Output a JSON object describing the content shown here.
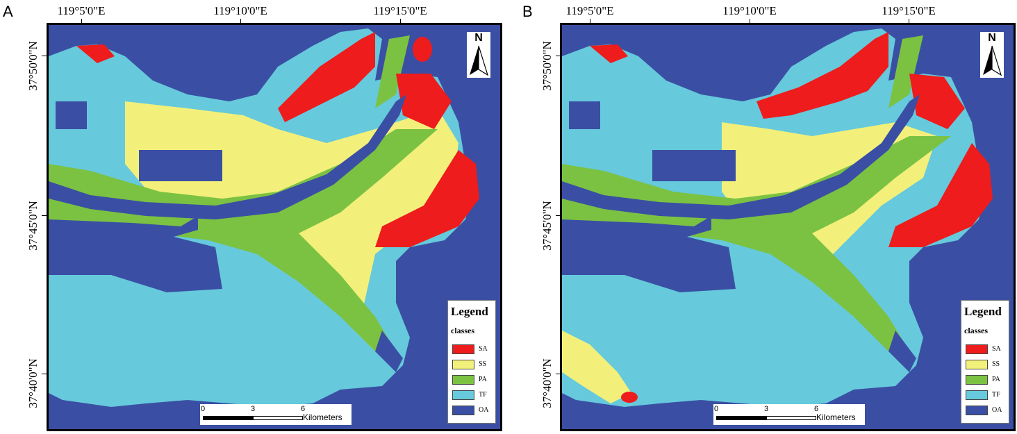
{
  "panels": [
    {
      "letter": "A",
      "lon_labels": [
        "119°5'0\"E",
        "119°10'0\"E",
        "119°15'0\"E"
      ],
      "lat_labels": [
        "37°50'0\"N",
        "37°45'0\"N",
        "37°40'0\"N"
      ],
      "north_label": "N",
      "legend_title": "Legend",
      "legend_subtitle": "classes",
      "scalebar": {
        "ticks": [
          "0",
          "3",
          "6"
        ],
        "unit": "Kilometers"
      }
    },
    {
      "letter": "B",
      "lon_labels": [
        "119°5'0\"E",
        "119°10'0\"E",
        "119°15'0\"E"
      ],
      "lat_labels": [
        "37°50'0\"N",
        "37°45'0\"N",
        "37°40'0\"N"
      ],
      "north_label": "N",
      "legend_title": "Legend",
      "legend_subtitle": "classes",
      "scalebar": {
        "ticks": [
          "0",
          "3",
          "6"
        ],
        "unit": "Kilometers"
      }
    }
  ],
  "classes": [
    {
      "code": "SA",
      "color": "#ee1c1c"
    },
    {
      "code": "SS",
      "color": "#f2f07a"
    },
    {
      "code": "PA",
      "color": "#7bc242"
    },
    {
      "code": "TF",
      "color": "#66c9dc"
    },
    {
      "code": "OA",
      "color": "#3a4fa3"
    }
  ]
}
